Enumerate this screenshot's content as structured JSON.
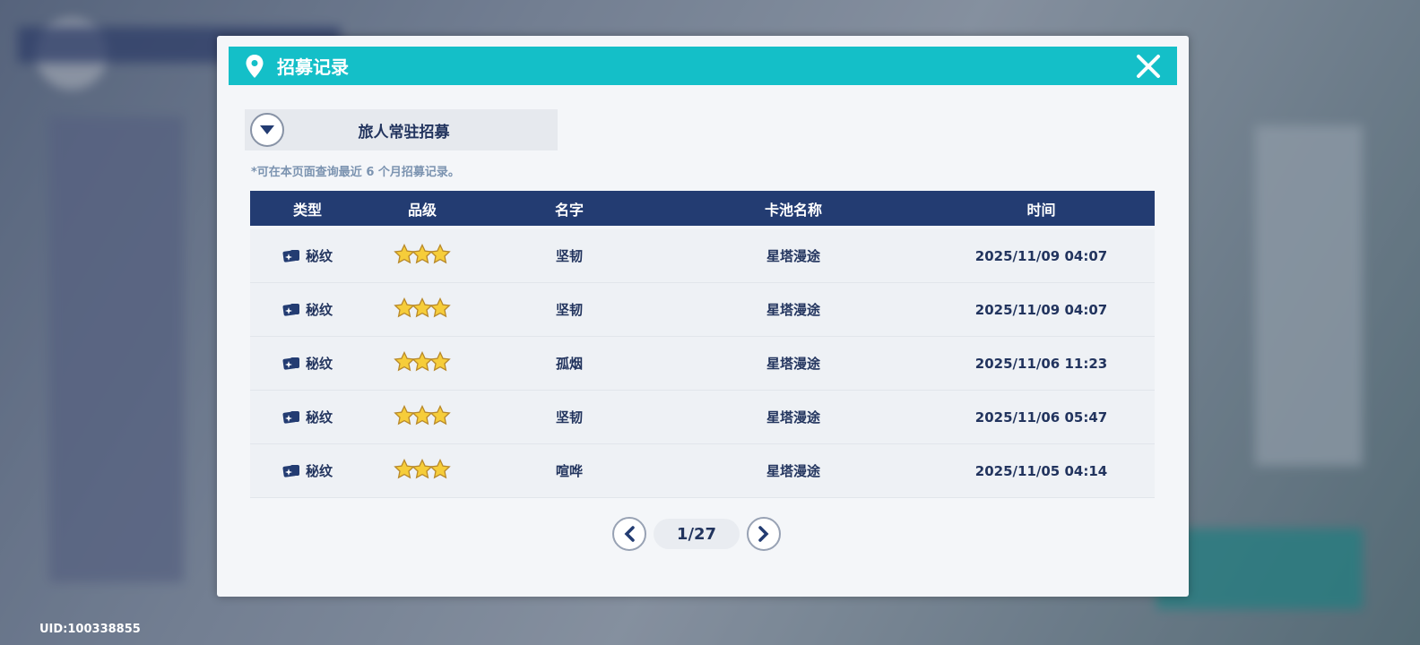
{
  "colors": {
    "accent": "#14bfc8",
    "table_header": "#233c72",
    "text": "#22345e"
  },
  "uid": "UID:100338855",
  "dialog": {
    "title": "招募记录",
    "title_icon": "location-pin-icon",
    "close_icon": "close-icon",
    "dropdown": {
      "selected": "旅人常驻招募"
    },
    "note": "*可在本页面查询最近 6 个月招募记录。",
    "table": {
      "headers": [
        "类型",
        "品级",
        "名字",
        "卡池名称",
        "时间"
      ],
      "rows": [
        {
          "type": "秘纹",
          "stars": 3,
          "name": "坚韧",
          "pool": "星塔漫途",
          "time": "2025/11/09 04:07"
        },
        {
          "type": "秘纹",
          "stars": 3,
          "name": "坚韧",
          "pool": "星塔漫途",
          "time": "2025/11/09 04:07"
        },
        {
          "type": "秘纹",
          "stars": 3,
          "name": "孤烟",
          "pool": "星塔漫途",
          "time": "2025/11/06 11:23"
        },
        {
          "type": "秘纹",
          "stars": 3,
          "name": "坚韧",
          "pool": "星塔漫途",
          "time": "2025/11/06 05:47"
        },
        {
          "type": "秘纹",
          "stars": 3,
          "name": "喧哗",
          "pool": "星塔漫途",
          "time": "2025/11/05 04:14"
        }
      ]
    },
    "pagination": {
      "current": 1,
      "total": 27,
      "label": "1/27"
    }
  }
}
